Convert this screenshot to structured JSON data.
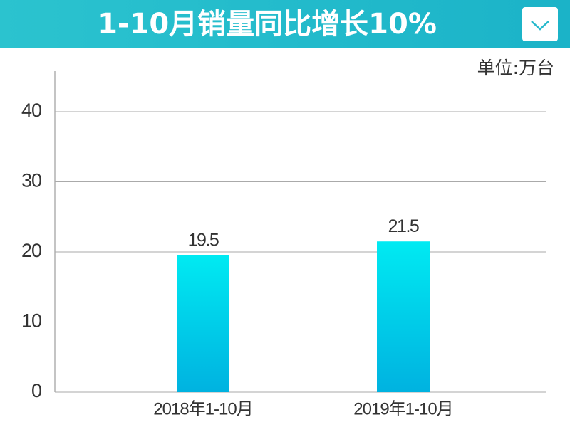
{
  "chart_data": {
    "type": "bar",
    "title": "1-10月销量同比增长10%",
    "unit": "单位:万台",
    "categories": [
      "2018年1-10月",
      "2019年1-10月"
    ],
    "values": [
      19.5,
      21.5
    ],
    "ylim": [
      0,
      45
    ],
    "yticks": [
      0,
      10,
      20,
      30,
      40
    ],
    "grid": true
  }
}
